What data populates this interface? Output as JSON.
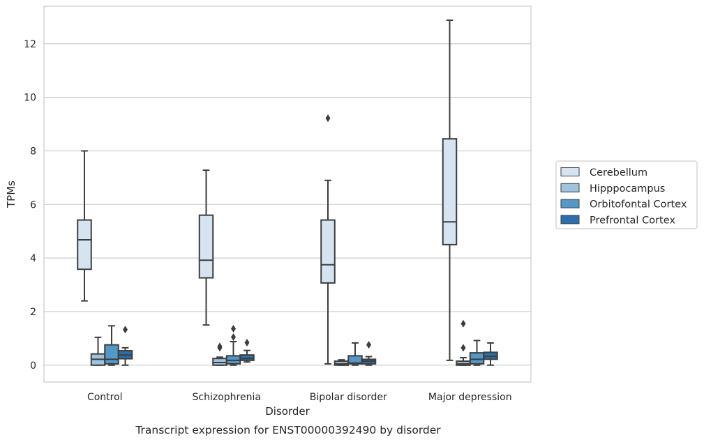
{
  "chart_data": {
    "type": "box",
    "title": "",
    "caption": "Transcript expression for ENST00000392490 by disorder",
    "xlabel": "Disorder",
    "ylabel": "TPMs",
    "ylim": [
      -0.63,
      13.4
    ],
    "yticks": [
      0,
      2,
      4,
      6,
      8,
      10,
      12
    ],
    "grid": "horizontal",
    "legend_position": "right",
    "categories": [
      "Control",
      "Schizophrenia",
      "Bipolar disorder",
      "Major depression"
    ],
    "series": [
      {
        "name": "Cerebellum",
        "color": "#d6e4f2",
        "boxes": [
          {
            "whisker_low": 2.4,
            "q1": 3.58,
            "median": 4.68,
            "q3": 5.42,
            "whisker_high": 8.0,
            "outliers": []
          },
          {
            "whisker_low": 1.5,
            "q1": 3.26,
            "median": 3.92,
            "q3": 5.6,
            "whisker_high": 7.28,
            "outliers": []
          },
          {
            "whisker_low": 0.05,
            "q1": 3.07,
            "median": 3.75,
            "q3": 5.42,
            "whisker_high": 6.9,
            "outliers": [
              9.22
            ]
          },
          {
            "whisker_low": 0.18,
            "q1": 4.5,
            "median": 5.35,
            "q3": 8.45,
            "whisker_high": 12.88,
            "outliers": []
          }
        ]
      },
      {
        "name": "Hipppocampus",
        "color": "#9dc4dd",
        "boxes": [
          {
            "whisker_low": 0.0,
            "q1": 0.0,
            "median": 0.22,
            "q3": 0.42,
            "whisker_high": 1.04,
            "outliers": []
          },
          {
            "whisker_low": 0.0,
            "q1": 0.0,
            "median": 0.1,
            "q3": 0.25,
            "whisker_high": 0.3,
            "outliers": [
              0.7,
              0.65
            ]
          },
          {
            "whisker_low": 0.0,
            "q1": 0.0,
            "median": 0.05,
            "q3": 0.15,
            "whisker_high": 0.2,
            "outliers": []
          },
          {
            "whisker_low": 0.0,
            "q1": 0.0,
            "median": 0.05,
            "q3": 0.15,
            "whisker_high": 0.28,
            "outliers": [
              1.55,
              0.65
            ]
          }
        ]
      },
      {
        "name": "Orbitofontal Cortex",
        "color": "#5597c6",
        "boxes": [
          {
            "whisker_low": 0.0,
            "q1": 0.05,
            "median": 0.22,
            "q3": 0.76,
            "whisker_high": 1.47,
            "outliers": []
          },
          {
            "whisker_low": 0.0,
            "q1": 0.05,
            "median": 0.18,
            "q3": 0.35,
            "whisker_high": 0.88,
            "outliers": [
              1.36,
              1.05
            ]
          },
          {
            "whisker_low": 0.0,
            "q1": 0.05,
            "median": 0.08,
            "q3": 0.35,
            "whisker_high": 0.83,
            "outliers": []
          },
          {
            "whisker_low": 0.0,
            "q1": 0.05,
            "median": 0.22,
            "q3": 0.46,
            "whisker_high": 0.92,
            "outliers": []
          }
        ]
      },
      {
        "name": "Prefrontal Cortex",
        "color": "#2b6fad",
        "boxes": [
          {
            "whisker_low": 0.0,
            "q1": 0.24,
            "median": 0.38,
            "q3": 0.54,
            "whisker_high": 0.65,
            "outliers": [
              1.33
            ]
          },
          {
            "whisker_low": 0.12,
            "q1": 0.18,
            "median": 0.25,
            "q3": 0.38,
            "whisker_high": 0.55,
            "outliers": [
              0.84
            ]
          },
          {
            "whisker_low": 0.0,
            "q1": 0.05,
            "median": 0.15,
            "q3": 0.22,
            "whisker_high": 0.32,
            "outliers": [
              0.76
            ]
          },
          {
            "whisker_low": 0.0,
            "q1": 0.22,
            "median": 0.33,
            "q3": 0.48,
            "whisker_high": 0.83,
            "outliers": []
          }
        ]
      }
    ]
  }
}
